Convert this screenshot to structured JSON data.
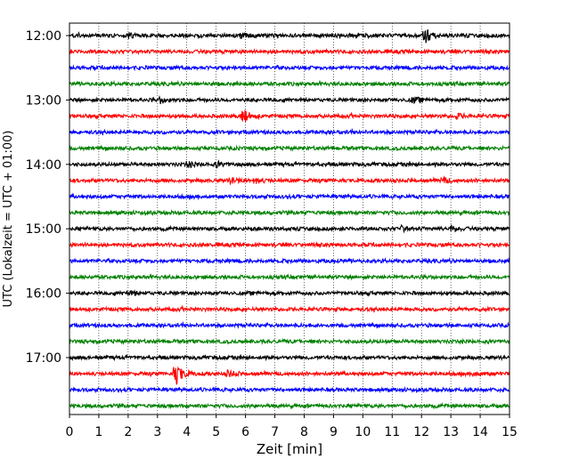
{
  "chart_data": {
    "type": "line",
    "subtype": "seismic-helicorder",
    "xlabel": "Zeit  [min]",
    "ylabel": "UTC (Lokalzeit = UTC + 01:00)",
    "xlim": [
      0,
      15
    ],
    "x_ticks": [
      "0",
      "1",
      "2",
      "3",
      "4",
      "5",
      "6",
      "7",
      "8",
      "9",
      "10",
      "11",
      "12",
      "13",
      "14",
      "15"
    ],
    "y_tick_labels": [
      "12:00",
      "13:00",
      "14:00",
      "15:00",
      "16:00",
      "17:00"
    ],
    "trace_interval_minutes": 15,
    "start_time": "12:00",
    "trace_count": 24,
    "colors": [
      "#000000",
      "#ff0000",
      "#0000ff",
      "#008000"
    ],
    "vertical_grid": "dotted",
    "events": [
      {
        "trace": 0,
        "minute": 12.1,
        "amplitude": 10
      },
      {
        "trace": 0,
        "minute": 5.8,
        "amplitude": 3
      },
      {
        "trace": 0,
        "minute": 2.0,
        "amplitude": 2.5
      },
      {
        "trace": 4,
        "minute": 3.1,
        "amplitude": 3
      },
      {
        "trace": 4,
        "minute": 11.7,
        "amplitude": 3
      },
      {
        "trace": 5,
        "minute": 5.9,
        "amplitude": 8
      },
      {
        "trace": 5,
        "minute": 13.2,
        "amplitude": 2.5
      },
      {
        "trace": 8,
        "minute": 4.0,
        "amplitude": 3
      },
      {
        "trace": 8,
        "minute": 5.0,
        "amplitude": 2.5
      },
      {
        "trace": 9,
        "minute": 5.5,
        "amplitude": 3.5
      },
      {
        "trace": 9,
        "minute": 6.3,
        "amplitude": 3
      },
      {
        "trace": 9,
        "minute": 12.7,
        "amplitude": 3
      },
      {
        "trace": 12,
        "minute": 11.3,
        "amplitude": 2.5
      },
      {
        "trace": 12,
        "minute": 13.0,
        "amplitude": 3
      },
      {
        "trace": 16,
        "minute": 2.0,
        "amplitude": 2.5
      },
      {
        "trace": 21,
        "minute": 3.6,
        "amplitude": 14
      },
      {
        "trace": 21,
        "minute": 5.4,
        "amplitude": 3
      },
      {
        "trace": 21,
        "minute": 13.8,
        "amplitude": 2
      }
    ]
  }
}
